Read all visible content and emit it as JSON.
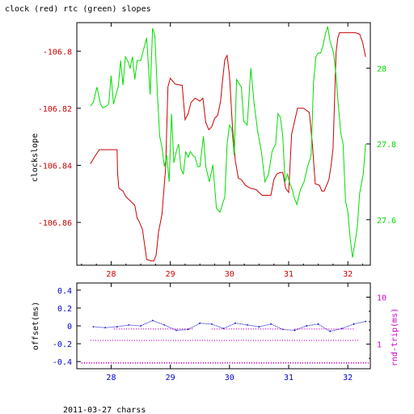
{
  "title": "clock (red) rtc (green) slopes",
  "footer": "2011-03-27 charss",
  "colors": {
    "red": "#cc0000",
    "green": "#00dd00",
    "blue": "#0000cc",
    "magenta": "#cc00cc",
    "axis": "#000000"
  },
  "chart_data": [
    {
      "type": "line",
      "title": "clock (red) rtc (green) slopes",
      "ylabel": "clockslope",
      "xlim": [
        27.42,
        32.38
      ],
      "ylim": [
        -106.875,
        -106.79
      ],
      "y2lim": [
        27.48,
        28.12
      ],
      "x_ticks": [
        28,
        29,
        30,
        31,
        32
      ],
      "y_ticks": [
        -106.8,
        -106.82,
        -106.84,
        -106.86
      ],
      "y_tick_labels": [
        "-106.8",
        "-106.82",
        "-106.84",
        "-106.86"
      ],
      "y2_ticks": [
        28,
        27.8,
        27.6
      ],
      "y2_tick_labels": [
        "28",
        "27.8",
        "27.6"
      ],
      "series": [
        {
          "name": "clock",
          "color": "#cc0000",
          "axis": "left",
          "x": [
            27.65,
            27.72,
            27.8,
            28.0,
            28.1,
            28.11,
            28.13,
            28.2,
            28.25,
            28.3,
            28.35,
            28.4,
            28.44,
            28.47,
            28.53,
            28.6,
            28.68,
            28.72,
            28.76,
            28.8,
            28.86,
            28.92,
            28.96,
            29.0,
            29.08,
            29.2,
            29.25,
            29.3,
            29.35,
            29.42,
            29.5,
            29.55,
            29.6,
            29.65,
            29.7,
            29.75,
            29.8,
            29.85,
            29.88,
            29.92,
            29.96,
            30.0,
            30.05,
            30.1,
            30.15,
            30.2,
            30.27,
            30.35,
            30.45,
            30.55,
            30.65,
            30.7,
            30.75,
            30.8,
            30.86,
            30.9,
            30.95,
            31.0,
            31.05,
            31.15,
            31.25,
            31.35,
            31.4,
            31.45,
            31.52,
            31.56,
            31.6,
            31.68,
            31.72,
            31.75,
            31.8,
            31.83,
            31.86,
            31.9,
            31.95,
            32.0,
            32.05,
            32.12,
            32.2,
            32.25,
            32.3
          ],
          "y": [
            -106.8395,
            -106.837,
            -106.8345,
            -106.8345,
            -106.8345,
            -106.843,
            -106.848,
            -106.849,
            -106.851,
            -106.852,
            -106.853,
            -106.854,
            -106.8585,
            -106.8595,
            -106.8625,
            -106.873,
            -106.8735,
            -106.8735,
            -106.8715,
            -106.8635,
            -106.857,
            -106.841,
            -106.8125,
            -106.8095,
            -106.8115,
            -106.812,
            -106.824,
            -106.822,
            -106.818,
            -106.8165,
            -106.8175,
            -106.8165,
            -106.825,
            -106.8275,
            -106.8265,
            -106.8235,
            -106.8225,
            -106.8175,
            -106.811,
            -106.803,
            -106.8015,
            -106.8085,
            -106.8265,
            -106.8385,
            -106.8445,
            -106.845,
            -106.847,
            -106.848,
            -106.8485,
            -106.8505,
            -106.8505,
            -106.8505,
            -106.845,
            -106.843,
            -106.8425,
            -106.8425,
            -106.848,
            -106.8495,
            -106.829,
            -106.82,
            -106.82,
            -106.8215,
            -106.8325,
            -106.8465,
            -106.847,
            -106.849,
            -106.849,
            -106.845,
            -106.8395,
            -106.834,
            -106.8005,
            -106.7955,
            -106.7935,
            -106.7935,
            -106.7935,
            -106.7935,
            -106.7935,
            -106.7935,
            -106.794,
            -106.797,
            -106.802
          ]
        },
        {
          "name": "rtc",
          "color": "#00dd00",
          "axis": "right",
          "x": [
            27.65,
            27.7,
            27.76,
            27.82,
            27.86,
            27.92,
            27.96,
            28.0,
            28.04,
            28.08,
            28.12,
            28.16,
            28.2,
            28.24,
            28.28,
            28.32,
            28.36,
            28.4,
            28.44,
            28.5,
            28.55,
            28.6,
            28.66,
            28.7,
            28.74,
            28.78,
            28.82,
            28.86,
            28.9,
            28.94,
            28.98,
            29.02,
            29.06,
            29.1,
            29.14,
            29.18,
            29.22,
            29.26,
            29.3,
            29.34,
            29.38,
            29.42,
            29.46,
            29.5,
            29.56,
            29.6,
            29.66,
            29.72,
            29.78,
            29.84,
            29.88,
            29.92,
            29.96,
            30.0,
            30.04,
            30.08,
            30.12,
            30.16,
            30.2,
            30.24,
            30.3,
            30.36,
            30.42,
            30.48,
            30.54,
            30.6,
            30.66,
            30.72,
            30.78,
            30.82,
            30.86,
            30.9,
            30.94,
            30.98,
            31.02,
            31.06,
            31.1,
            31.14,
            31.2,
            31.26,
            31.32,
            31.38,
            31.42,
            31.46,
            31.5,
            31.54,
            31.58,
            31.62,
            31.66,
            31.7,
            31.74,
            31.76,
            31.8,
            31.84,
            31.88,
            31.92,
            31.96,
            32.0,
            32.04,
            32.08,
            32.12,
            32.16,
            32.2,
            32.26,
            32.3
          ],
          "y": [
            27.9,
            27.91,
            27.95,
            27.905,
            27.895,
            27.9,
            27.905,
            27.98,
            27.905,
            27.93,
            27.95,
            28.02,
            27.955,
            28.03,
            28.02,
            28.0,
            28.03,
            27.97,
            28.02,
            28.02,
            28.05,
            28.08,
            27.93,
            28.105,
            28.085,
            27.94,
            27.82,
            27.79,
            27.74,
            27.77,
            27.7,
            27.88,
            27.75,
            27.78,
            27.8,
            27.735,
            27.72,
            27.78,
            27.765,
            27.78,
            27.77,
            27.765,
            27.74,
            27.74,
            27.82,
            27.74,
            27.7,
            27.745,
            27.63,
            27.62,
            27.64,
            27.66,
            27.8,
            27.85,
            27.84,
            27.77,
            27.97,
            27.96,
            27.95,
            27.86,
            27.85,
            28.0,
            27.9,
            27.83,
            27.78,
            27.7,
            27.72,
            27.78,
            27.8,
            27.88,
            27.87,
            27.82,
            27.7,
            27.72,
            27.695,
            27.68,
            27.655,
            27.64,
            27.68,
            27.7,
            27.74,
            27.77,
            27.96,
            28.03,
            28.04,
            28.04,
            28.06,
            28.09,
            28.11,
            28.07,
            28.05,
            28.04,
            27.98,
            27.9,
            27.83,
            27.8,
            27.65,
            27.62,
            27.55,
            27.5,
            27.54,
            27.58,
            27.67,
            27.72,
            27.8
          ]
        }
      ]
    },
    {
      "type": "scatter",
      "ylabel": "offset(ms)",
      "y2label": "rnd-trip(ms)",
      "xlim": [
        27.42,
        32.38
      ],
      "ylim": [
        -0.48,
        0.48
      ],
      "y_ticks": [
        0.4,
        0.2,
        0,
        -0.2,
        -0.4
      ],
      "y_tick_labels": [
        "0.4",
        "0.2",
        "0",
        "-0.2",
        "-0.4"
      ],
      "y2_scale": "log",
      "y2lim": [
        0.3,
        20
      ],
      "y2_ticks": [
        10,
        1
      ],
      "y2_tick_labels": [
        "10",
        "1"
      ],
      "x_ticks": [
        28,
        29,
        30,
        31,
        32
      ],
      "series": [
        {
          "name": "offset",
          "color": "#0000cc",
          "axis": "left",
          "x": [
            27.7,
            27.9,
            28.1,
            28.3,
            28.5,
            28.7,
            28.9,
            29.1,
            29.3,
            29.5,
            29.7,
            29.9,
            30.1,
            30.3,
            30.5,
            30.7,
            30.9,
            31.1,
            31.3,
            31.5,
            31.7,
            31.9,
            32.1,
            32.3
          ],
          "y": [
            -0.01,
            -0.02,
            -0.01,
            0.01,
            0.0,
            0.06,
            0.01,
            -0.05,
            -0.04,
            0.03,
            0.02,
            -0.03,
            0.03,
            0.01,
            -0.01,
            0.02,
            -0.04,
            -0.05,
            0.0,
            0.02,
            -0.06,
            -0.03,
            0.02,
            0.05
          ]
        },
        {
          "name": "rnd-trip",
          "color": "#cc00cc",
          "axis": "right",
          "bands": [
            {
              "y": 0.4,
              "x0": 27.5,
              "x1": 32.35
            },
            {
              "y": 1.2,
              "x0": 27.65,
              "x1": 32.2
            },
            {
              "y": 2.1,
              "x0": 28.05,
              "x1": 29.4
            },
            {
              "y": 2.1,
              "x0": 29.7,
              "x1": 30.9
            },
            {
              "y": 2.1,
              "x0": 31.1,
              "x1": 32.1
            }
          ]
        }
      ]
    }
  ]
}
